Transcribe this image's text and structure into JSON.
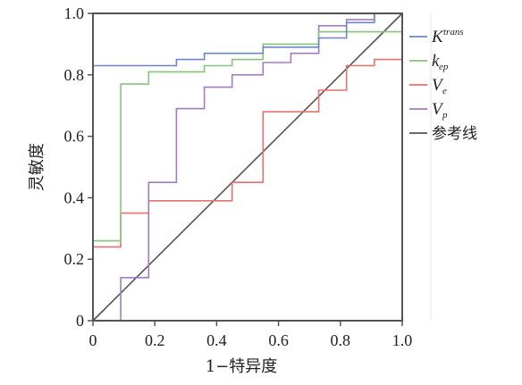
{
  "chart_data": {
    "type": "line",
    "title": "",
    "xlabel": "1−特异度",
    "ylabel": "灵敏度",
    "xlim": [
      0,
      1
    ],
    "ylim": [
      0,
      1
    ],
    "xticks": [
      "0",
      "0.2",
      "0.4",
      "0.6",
      "0.8",
      "1.0"
    ],
    "yticks": [
      "0",
      "0.2",
      "0.4",
      "0.6",
      "0.8",
      "1.0"
    ],
    "grid": false,
    "legend_position": "right",
    "series": [
      {
        "key": "ktrans",
        "name": "K^trans",
        "symbol": "K",
        "sup": "trans",
        "sub": "",
        "color": "#6a86c4",
        "x": [
          0,
          0,
          0.27,
          0.27,
          0.36,
          0.36,
          0.55,
          0.55,
          0.73,
          0.73,
          0.82,
          0.82,
          0.91,
          0.91,
          1.0
        ],
        "y": [
          0,
          0.83,
          0.83,
          0.85,
          0.85,
          0.87,
          0.87,
          0.89,
          0.89,
          0.92,
          0.92,
          0.97,
          0.97,
          1.0,
          1.0
        ]
      },
      {
        "key": "kep",
        "name": "k_ep",
        "symbol": "k",
        "sup": "",
        "sub": "ep",
        "color": "#86c47a",
        "x": [
          0,
          0,
          0.09,
          0.09,
          0.18,
          0.18,
          0.36,
          0.36,
          0.45,
          0.45,
          0.55,
          0.55,
          0.73,
          0.73,
          0.82,
          0.82,
          1.0
        ],
        "y": [
          0,
          0.26,
          0.26,
          0.77,
          0.77,
          0.81,
          0.81,
          0.83,
          0.83,
          0.85,
          0.85,
          0.9,
          0.9,
          0.94,
          0.94,
          0.94,
          0.94
        ]
      },
      {
        "key": "ve",
        "name": "V_e",
        "symbol": "V",
        "sup": "",
        "sub": "e",
        "color": "#e8716f",
        "x": [
          0,
          0,
          0.09,
          0.09,
          0.18,
          0.18,
          0.45,
          0.45,
          0.55,
          0.55,
          0.73,
          0.73,
          0.82,
          0.82,
          0.91,
          0.91,
          1.0
        ],
        "y": [
          0,
          0.24,
          0.24,
          0.35,
          0.35,
          0.39,
          0.39,
          0.45,
          0.45,
          0.68,
          0.68,
          0.75,
          0.75,
          0.83,
          0.83,
          0.85,
          0.85
        ]
      },
      {
        "key": "vp",
        "name": "V_p",
        "symbol": "V",
        "sup": "",
        "sub": "p",
        "color": "#a37ac4",
        "x": [
          0,
          0.09,
          0.09,
          0.18,
          0.18,
          0.27,
          0.27,
          0.36,
          0.36,
          0.45,
          0.45,
          0.55,
          0.55,
          0.64,
          0.64,
          0.73,
          0.73,
          0.82,
          0.82,
          0.91,
          0.91,
          1.0
        ],
        "y": [
          0,
          0,
          0.14,
          0.14,
          0.45,
          0.45,
          0.69,
          0.69,
          0.76,
          0.76,
          0.8,
          0.8,
          0.84,
          0.84,
          0.87,
          0.87,
          0.96,
          0.96,
          0.98,
          0.98,
          1.0,
          1.0
        ]
      },
      {
        "key": "reference",
        "name": "参考线",
        "symbol": "",
        "sup": "",
        "sub": "",
        "color": "#555555",
        "x": [
          0,
          1
        ],
        "y": [
          0,
          1
        ]
      }
    ]
  }
}
